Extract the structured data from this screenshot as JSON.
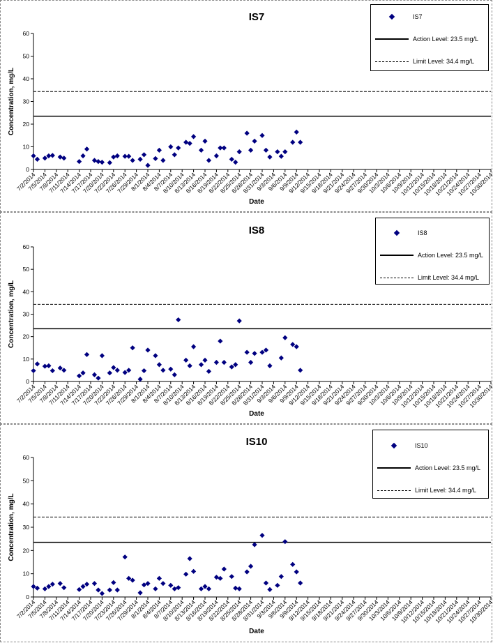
{
  "chart_data": [
    {
      "type": "scatter",
      "title": "IS7",
      "xlabel": "Date",
      "ylabel": "Concentration, mg/L",
      "ylim": [
        0,
        60
      ],
      "yticks": [
        "0",
        "10",
        "20",
        "30",
        "40",
        "50",
        "60"
      ],
      "xtick_labels": [
        "7/2/2014",
        "7/5/2014",
        "7/8/2014",
        "7/11/2014",
        "7/14/2014",
        "7/17/2014",
        "7/20/2014",
        "7/23/2014",
        "7/26/2014",
        "7/29/2014",
        "8/1/2014",
        "8/4/2014",
        "8/7/2014",
        "8/10/2014",
        "8/13/2014",
        "8/16/2014",
        "8/19/2014",
        "8/22/2014",
        "8/25/2014",
        "8/28/2014",
        "8/31/2014",
        "9/3/2014",
        "9/6/2014",
        "9/9/2014",
        "9/12/2014",
        "9/15/2014",
        "9/18/2014",
        "9/21/2014",
        "9/24/2014",
        "9/27/2014",
        "9/30/2014",
        "10/3/2014",
        "10/6/2014",
        "10/9/2014",
        "10/12/2014",
        "10/15/2014",
        "10/18/2014",
        "10/21/2014",
        "10/24/2014",
        "10/27/2014",
        "10/30/2014"
      ],
      "series": [
        {
          "name": "IS7",
          "marker": "diamond",
          "color": "#000080",
          "points": [
            [
              "7/2/2014",
              6
            ],
            [
              "7/3/2014",
              4.5
            ],
            [
              "7/5/2014",
              5
            ],
            [
              "7/6/2014",
              6
            ],
            [
              "7/7/2014",
              6.2
            ],
            [
              "7/9/2014",
              5.5
            ],
            [
              "7/10/2014",
              5
            ],
            [
              "7/14/2014",
              3.5
            ],
            [
              "7/15/2014",
              6
            ],
            [
              "7/16/2014",
              9
            ],
            [
              "7/18/2014",
              4
            ],
            [
              "7/19/2014",
              3.5
            ],
            [
              "7/20/2014",
              3.2
            ],
            [
              "7/22/2014",
              3
            ],
            [
              "7/23/2014",
              5.5
            ],
            [
              "7/24/2014",
              6
            ],
            [
              "7/26/2014",
              5.8
            ],
            [
              "7/27/2014",
              5.8
            ],
            [
              "7/28/2014",
              4
            ],
            [
              "7/30/2014",
              4.5
            ],
            [
              "7/31/2014",
              6.5
            ],
            [
              "8/1/2014",
              1.8
            ],
            [
              "8/3/2014",
              4.8
            ],
            [
              "8/4/2014",
              8.5
            ],
            [
              "8/5/2014",
              4
            ],
            [
              "8/7/2014",
              10
            ],
            [
              "8/8/2014",
              6.5
            ],
            [
              "8/9/2014",
              9.5
            ],
            [
              "8/11/2014",
              12
            ],
            [
              "8/12/2014",
              11.5
            ],
            [
              "8/13/2014",
              14.5
            ],
            [
              "8/15/2014",
              8.5
            ],
            [
              "8/16/2014",
              12.5
            ],
            [
              "8/17/2014",
              4
            ],
            [
              "8/19/2014",
              6
            ],
            [
              "8/20/2014",
              9.5
            ],
            [
              "8/21/2014",
              9.5
            ],
            [
              "8/23/2014",
              4.5
            ],
            [
              "8/24/2014",
              3.2
            ],
            [
              "8/25/2014",
              7.8
            ],
            [
              "8/27/2014",
              16
            ],
            [
              "8/28/2014",
              8.5
            ],
            [
              "8/29/2014",
              12.5
            ],
            [
              "8/31/2014",
              15
            ],
            [
              "9/1/2014",
              8.5
            ],
            [
              "9/2/2014",
              5.5
            ],
            [
              "9/4/2014",
              7.8
            ],
            [
              "9/5/2014",
              5.8
            ],
            [
              "9/6/2014",
              7.8
            ],
            [
              "9/8/2014",
              12
            ],
            [
              "9/9/2014",
              16.5
            ],
            [
              "9/10/2014",
              12
            ]
          ]
        },
        {
          "name": "Action Level: 23.5 mg/L",
          "type": "hline",
          "y": 23.5,
          "style": "solid"
        },
        {
          "name": "Limit Level: 34.4 mg/L",
          "type": "hline",
          "y": 34.4,
          "style": "dashed"
        }
      ],
      "legend": "top-right",
      "grid": false
    },
    {
      "type": "scatter",
      "title": "IS8",
      "xlabel": "Date",
      "ylabel": "Concentration, mg/L",
      "ylim": [
        0,
        60
      ],
      "yticks": [
        "0",
        "10",
        "20",
        "30",
        "40",
        "50",
        "60"
      ],
      "xtick_labels": [
        "7/2/2014",
        "7/5/2014",
        "7/8/2014",
        "7/11/2014",
        "7/14/2014",
        "7/17/2014",
        "7/20/2014",
        "7/23/2014",
        "7/26/2014",
        "7/29/2014",
        "8/1/2014",
        "8/4/2014",
        "8/7/2014",
        "8/10/2014",
        "8/13/2014",
        "8/16/2014",
        "8/19/2014",
        "8/22/2014",
        "8/25/2014",
        "8/28/2014",
        "8/31/2014",
        "9/3/2014",
        "9/6/2014",
        "9/9/2014",
        "9/12/2014",
        "9/15/2014",
        "9/18/2014",
        "9/21/2014",
        "9/24/2014",
        "9/27/2014",
        "9/30/2014",
        "10/3/2014",
        "10/6/2014",
        "10/9/2014",
        "10/12/2014",
        "10/15/2014",
        "10/18/2014",
        "10/21/2014",
        "10/24/2014",
        "10/27/2014",
        "10/30/2014"
      ],
      "series": [
        {
          "name": "IS8",
          "marker": "diamond",
          "color": "#000080",
          "points": [
            [
              "7/2/2014",
              4.8
            ],
            [
              "7/3/2014",
              7.8
            ],
            [
              "7/5/2014",
              6.8
            ],
            [
              "7/6/2014",
              7
            ],
            [
              "7/7/2014",
              4.8
            ],
            [
              "7/9/2014",
              6
            ],
            [
              "7/10/2014",
              5
            ],
            [
              "7/14/2014",
              2.5
            ],
            [
              "7/15/2014",
              3.8
            ],
            [
              "7/16/2014",
              12
            ],
            [
              "7/18/2014",
              3
            ],
            [
              "7/19/2014",
              1.5
            ],
            [
              "7/20/2014",
              11.5
            ],
            [
              "7/22/2014",
              3.8
            ],
            [
              "7/23/2014",
              6.2
            ],
            [
              "7/24/2014",
              5
            ],
            [
              "7/26/2014",
              4
            ],
            [
              "7/27/2014",
              5
            ],
            [
              "7/28/2014",
              15
            ],
            [
              "7/30/2014",
              1
            ],
            [
              "7/31/2014",
              4.8
            ],
            [
              "8/1/2014",
              14
            ],
            [
              "8/3/2014",
              11.5
            ],
            [
              "8/4/2014",
              7.5
            ],
            [
              "8/5/2014",
              5
            ],
            [
              "8/7/2014",
              5.5
            ],
            [
              "8/8/2014",
              3
            ],
            [
              "8/9/2014",
              27.5
            ],
            [
              "8/11/2014",
              9.5
            ],
            [
              "8/12/2014",
              7
            ],
            [
              "8/13/2014",
              15.5
            ],
            [
              "8/15/2014",
              7.5
            ],
            [
              "8/16/2014",
              9.5
            ],
            [
              "8/17/2014",
              4.5
            ],
            [
              "8/19/2014",
              8.5
            ],
            [
              "8/20/2014",
              18
            ],
            [
              "8/21/2014",
              8.5
            ],
            [
              "8/23/2014",
              6.5
            ],
            [
              "8/24/2014",
              7.5
            ],
            [
              "8/25/2014",
              27
            ],
            [
              "8/27/2014",
              13
            ],
            [
              "8/28/2014",
              8.5
            ],
            [
              "8/29/2014",
              12.5
            ],
            [
              "8/31/2014",
              13
            ],
            [
              "9/1/2014",
              14
            ],
            [
              "9/2/2014",
              7
            ],
            [
              "9/5/2014",
              10.5
            ],
            [
              "9/6/2014",
              19.5
            ],
            [
              "9/8/2014",
              16.5
            ],
            [
              "9/9/2014",
              15.5
            ],
            [
              "9/10/2014",
              5
            ]
          ]
        },
        {
          "name": "Action Level: 23.5 mg/L",
          "type": "hline",
          "y": 23.5,
          "style": "solid"
        },
        {
          "name": "Limit Level: 34.4 mg/L",
          "type": "hline",
          "y": 34.4,
          "style": "dashed"
        }
      ],
      "legend": "top-right",
      "grid": false
    },
    {
      "type": "scatter",
      "title": "IS10",
      "xlabel": "Date",
      "ylabel": "Concentration, mg/L",
      "ylim": [
        0,
        60
      ],
      "yticks": [
        "0",
        "10",
        "20",
        "30",
        "40",
        "50",
        "60"
      ],
      "xtick_labels": [
        "7/2/2014",
        "7/5/2014",
        "7/8/2014",
        "7/11/2014",
        "7/14/2014",
        "7/17/2014",
        "7/20/2014",
        "7/23/2014",
        "7/26/2014",
        "7/29/2014",
        "8/1/2014",
        "8/4/2014",
        "8/7/2014",
        "8/10/2014",
        "8/13/2014",
        "8/16/2014",
        "8/19/2014",
        "8/22/2014",
        "8/25/2014",
        "8/28/2014",
        "8/31/2014",
        "9/3/2014",
        "9/6/2014",
        "9/9/2014",
        "9/12/2014",
        "9/15/2014",
        "9/18/2014",
        "9/21/2014",
        "9/24/2014",
        "9/27/2014",
        "9/30/2014",
        "10/3/2014",
        "10/6/2014",
        "10/9/2014",
        "10/12/2014",
        "10/15/2014",
        "10/18/2014",
        "10/21/2014",
        "10/24/2014",
        "10/27/2014",
        "10/30/2014"
      ],
      "series": [
        {
          "name": "IS10",
          "marker": "diamond",
          "color": "#000080",
          "points": [
            [
              "7/2/2014",
              4.5
            ],
            [
              "7/3/2014",
              3.8
            ],
            [
              "7/5/2014",
              3.5
            ],
            [
              "7/6/2014",
              4.5
            ],
            [
              "7/7/2014",
              5.5
            ],
            [
              "7/9/2014",
              5.8
            ],
            [
              "7/10/2014",
              4
            ],
            [
              "7/14/2014",
              3.2
            ],
            [
              "7/15/2014",
              4.5
            ],
            [
              "7/16/2014",
              5.5
            ],
            [
              "7/18/2014",
              5.8
            ],
            [
              "7/19/2014",
              3
            ],
            [
              "7/20/2014",
              1.5
            ],
            [
              "7/22/2014",
              3
            ],
            [
              "7/23/2014",
              6.2
            ],
            [
              "7/24/2014",
              3
            ],
            [
              "7/26/2014",
              17.2
            ],
            [
              "7/27/2014",
              8
            ],
            [
              "7/28/2014",
              7.2
            ],
            [
              "7/30/2014",
              1.8
            ],
            [
              "7/31/2014",
              5.2
            ],
            [
              "8/1/2014",
              5.8
            ],
            [
              "8/3/2014",
              3.5
            ],
            [
              "8/4/2014",
              8
            ],
            [
              "8/5/2014",
              5.8
            ],
            [
              "8/7/2014",
              5
            ],
            [
              "8/8/2014",
              3.5
            ],
            [
              "8/9/2014",
              4
            ],
            [
              "8/11/2014",
              9.8
            ],
            [
              "8/12/2014",
              16.5
            ],
            [
              "8/13/2014",
              11
            ],
            [
              "8/15/2014",
              3.5
            ],
            [
              "8/16/2014",
              4.5
            ],
            [
              "8/17/2014",
              3.5
            ],
            [
              "8/19/2014",
              8.5
            ],
            [
              "8/20/2014",
              8
            ],
            [
              "8/21/2014",
              12
            ],
            [
              "8/23/2014",
              8.8
            ],
            [
              "8/24/2014",
              3.8
            ],
            [
              "8/25/2014",
              3.5
            ],
            [
              "8/27/2014",
              10.8
            ],
            [
              "8/28/2014",
              13.2
            ],
            [
              "8/29/2014",
              22.5
            ],
            [
              "8/31/2014",
              26.5
            ],
            [
              "9/1/2014",
              6
            ],
            [
              "9/2/2014",
              3.2
            ],
            [
              "9/4/2014",
              5
            ],
            [
              "9/5/2014",
              8.8
            ],
            [
              "9/6/2014",
              23.8
            ],
            [
              "9/8/2014",
              14
            ],
            [
              "9/9/2014",
              10.8
            ],
            [
              "9/10/2014",
              6
            ]
          ]
        },
        {
          "name": "Action Level: 23.5 mg/L",
          "type": "hline",
          "y": 23.5,
          "style": "solid"
        },
        {
          "name": "Limit Level: 34.4 mg/L",
          "type": "hline",
          "y": 34.4,
          "style": "dashed"
        }
      ],
      "legend": "top-right",
      "grid": false
    }
  ]
}
